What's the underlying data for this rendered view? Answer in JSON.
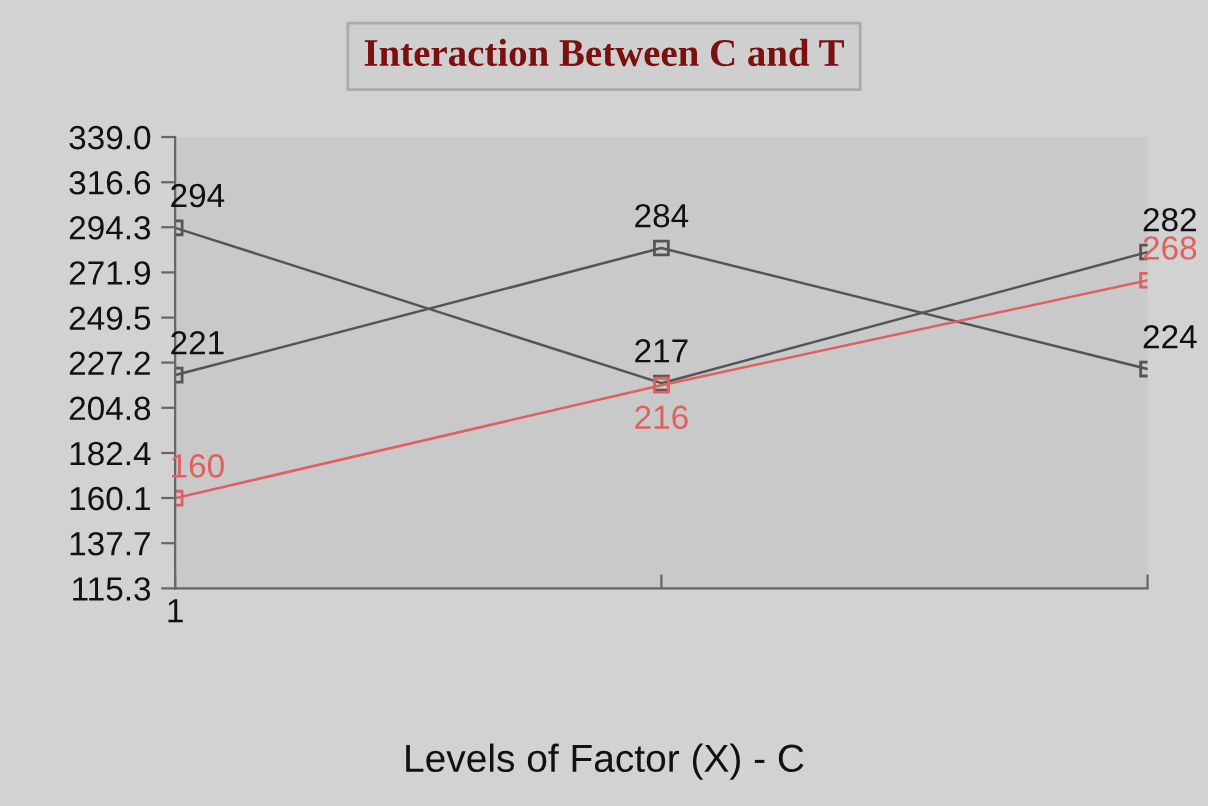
{
  "chart_data": {
    "type": "line",
    "title": "Interaction Between C and T",
    "xlabel": "Levels of Factor (X) - C",
    "categories": [
      "1",
      null,
      null
    ],
    "series": [
      {
        "color": "#555555",
        "values": [
          294,
          217,
          282
        ]
      },
      {
        "color": "#555555",
        "values": [
          221,
          284,
          224
        ]
      },
      {
        "color": "#e06060",
        "values": [
          160,
          216,
          268
        ]
      }
    ],
    "ylim": [
      115.3,
      339.0
    ],
    "yticks": [
      {
        "value": 115.3,
        "label": "115.3"
      },
      {
        "value": 137.7,
        "label": "137.7"
      },
      {
        "value": 160.1,
        "label": "160.1"
      },
      {
        "value": 182.4,
        "label": "182.4"
      },
      {
        "value": 204.8,
        "label": "204.8"
      },
      {
        "value": 227.2,
        "label": "227.2"
      },
      {
        "value": 249.5,
        "label": "249.5"
      },
      {
        "value": 271.9,
        "label": "271.9"
      },
      {
        "value": 294.3,
        "label": "294.3"
      },
      {
        "value": 316.6,
        "label": "316.6"
      },
      {
        "value": 339.0,
        "label": "339.0"
      }
    ],
    "data_labels": true,
    "marker": "square",
    "line_style": "solid",
    "grid": false,
    "legend": false
  }
}
